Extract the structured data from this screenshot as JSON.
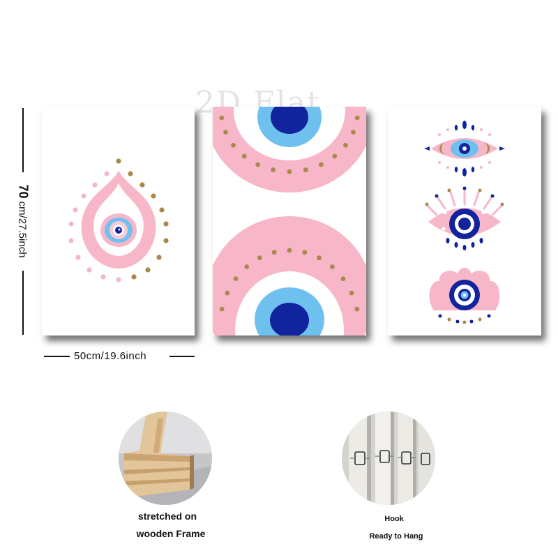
{
  "watermark": "2D Flat",
  "dimensions": {
    "height_value": "70",
    "height_unit": " cm/27.5inch",
    "width_label": "50cm/19.6inch"
  },
  "features": [
    {
      "caption_line1": "stretched on",
      "caption_line2": "wooden Frame"
    },
    {
      "caption_line1": "Hook",
      "caption_line2": "Ready to Hang"
    }
  ],
  "colors": {
    "pink": "#f7b7c9",
    "light_blue": "#6ec0ee",
    "navy": "#12239e",
    "gold": "#a8894a",
    "light_pink_dot": "#f2b8c8"
  }
}
